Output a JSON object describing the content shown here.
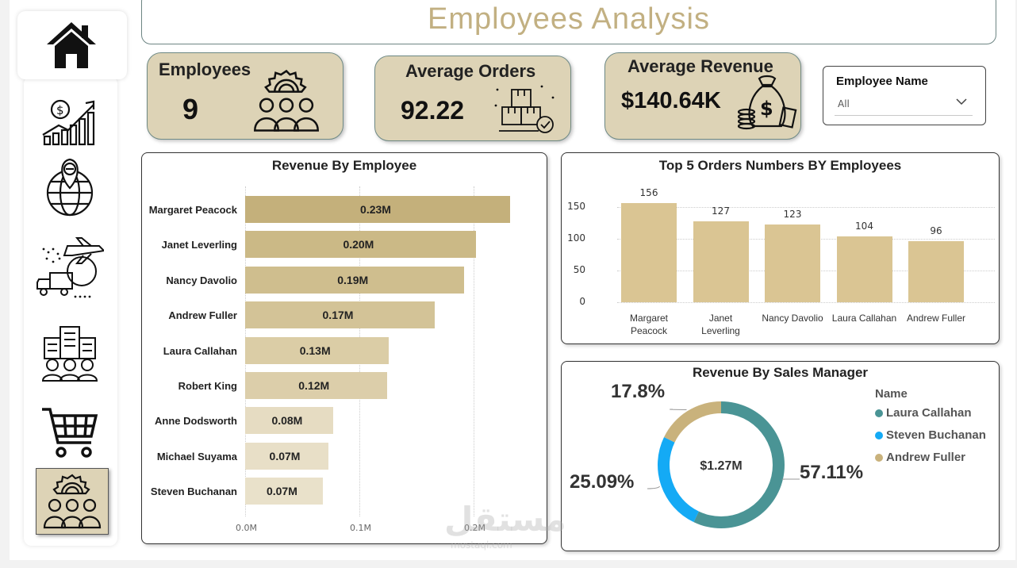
{
  "title": "Employees  Analysis",
  "kpis": {
    "employees": {
      "label": "Employees",
      "value": "9"
    },
    "avg_orders": {
      "label": "Average Orders",
      "value": "92.22"
    },
    "avg_revenue": {
      "label": "Average Revenue",
      "value": "$140.64K"
    }
  },
  "slicer": {
    "title": "Employee Name",
    "value": "All"
  },
  "nav": [
    {
      "name": "home-icon"
    },
    {
      "name": "revenue-growth-icon"
    },
    {
      "name": "global-location-icon"
    },
    {
      "name": "shipping-icon"
    },
    {
      "name": "company-people-icon"
    },
    {
      "name": "shopping-cart-icon"
    },
    {
      "name": "employees-team-icon"
    }
  ],
  "watermark": {
    "text": "مستقل",
    "sub": "mostaql.com"
  },
  "chart_data": [
    {
      "type": "bar",
      "orientation": "horizontal",
      "title": "Revenue By Employee",
      "categories": [
        "Margaret Peacock",
        "Janet Leverling",
        "Nancy Davolio",
        "Andrew Fuller",
        "Laura Callahan",
        "Robert King",
        "Anne Dodsworth",
        "Michael Suyama",
        "Steven Buchanan"
      ],
      "values": [
        0.232,
        0.202,
        0.192,
        0.166,
        0.126,
        0.124,
        0.077,
        0.073,
        0.068
      ],
      "labels": [
        "0.23M",
        "0.20M",
        "0.19M",
        "0.17M",
        "0.13M",
        "0.12M",
        "0.08M",
        "0.07M",
        "0.07M"
      ],
      "xticks": [
        "0.0M",
        "0.1M",
        "0.2M"
      ],
      "xlim": [
        0,
        0.26
      ],
      "colors": [
        "#c4b07b",
        "#cbb986",
        "#cfbe8e",
        "#d3c397",
        "#dbcda6",
        "#dcceaa",
        "#e6dcc2",
        "#e8dfc7",
        "#e9e1ca"
      ]
    },
    {
      "type": "bar",
      "title": "Top 5 Orders Numbers BY Employees",
      "categories": [
        "Margaret Peacock",
        "Janet Leverling",
        "Nancy Davolio",
        "Laura Callahan",
        "Andrew Fuller"
      ],
      "category_lines": [
        [
          "Margaret",
          "Peacock"
        ],
        [
          "Janet",
          "Leverling"
        ],
        [
          "Nancy Davolio"
        ],
        [
          "Laura Callahan"
        ],
        [
          "Andrew Fuller"
        ]
      ],
      "values": [
        156,
        127,
        123,
        104,
        96
      ],
      "yticks": [
        0,
        50,
        100,
        150
      ],
      "ylim": [
        0,
        175
      ],
      "color": "#dac593"
    },
    {
      "type": "pie",
      "title": "Revenue By Sales Manager",
      "center_label": "$1.27M",
      "legend_title": "Name",
      "slices": [
        {
          "name": "Laura Callahan",
          "value": 57.11,
          "label": "57.11%",
          "color": "#4a9495"
        },
        {
          "name": "Steven Buchanan",
          "value": 25.09,
          "label": "25.09%",
          "color": "#14aaf5"
        },
        {
          "name": "Andrew Fuller",
          "value": 17.8,
          "label": "17.8%",
          "color": "#c9b27c"
        }
      ]
    }
  ]
}
